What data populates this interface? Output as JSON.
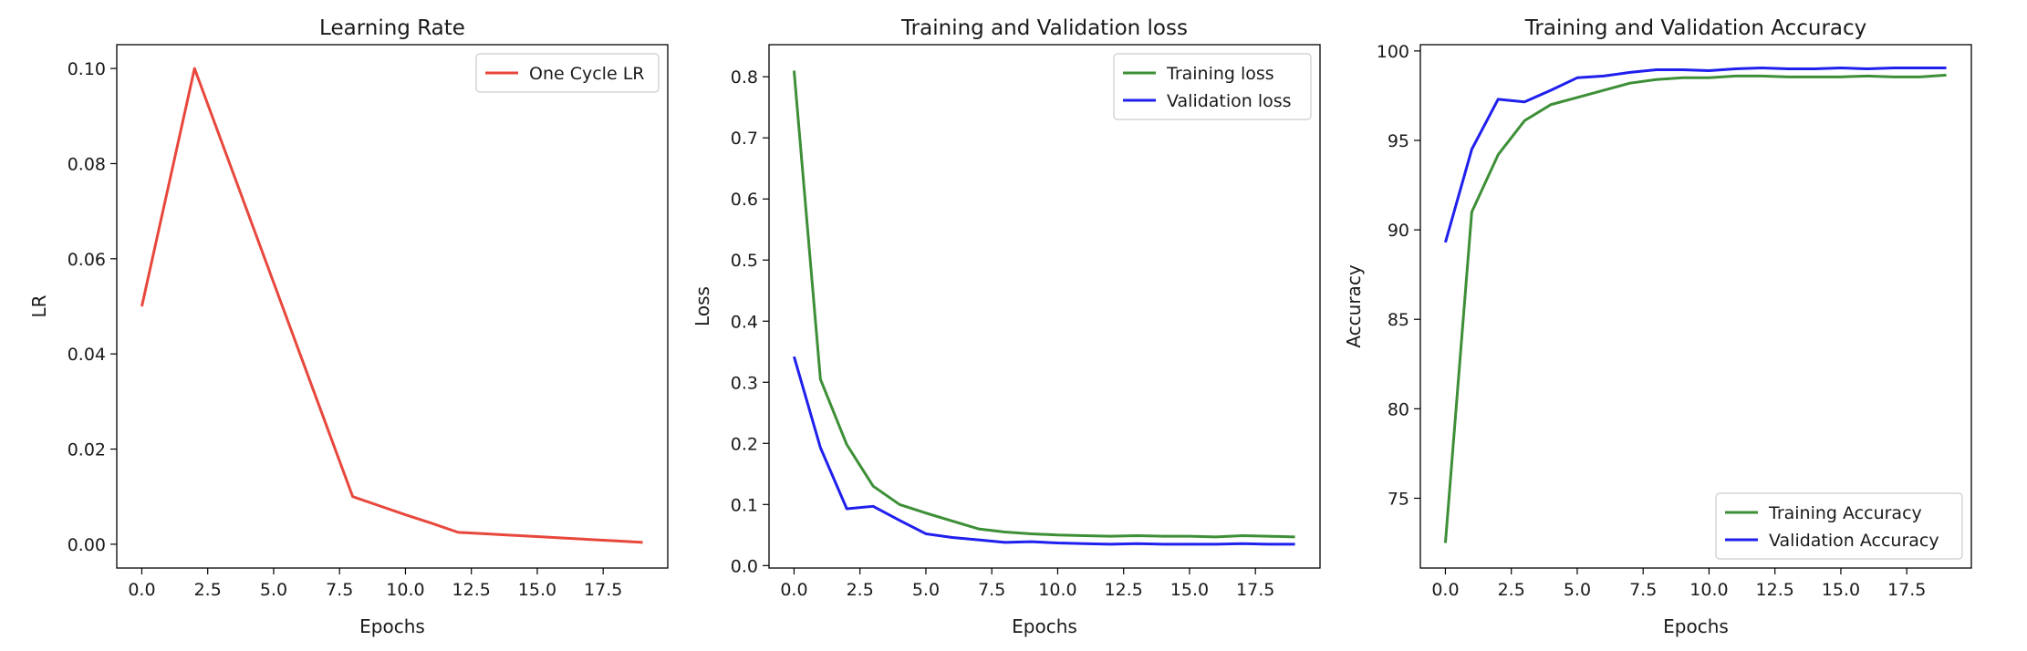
{
  "chart_data": [
    {
      "type": "line",
      "title": "Learning Rate",
      "xlabel": "Epochs",
      "ylabel": "LR",
      "xlim": [
        -0.95,
        19.95
      ],
      "ylim": [
        -0.005,
        0.105
      ],
      "xticks": [
        0.0,
        2.5,
        5.0,
        7.5,
        10.0,
        12.5,
        15.0,
        17.5
      ],
      "xtick_labels": [
        "0.0",
        "2.5",
        "5.0",
        "7.5",
        "10.0",
        "12.5",
        "15.0",
        "17.5"
      ],
      "yticks": [
        0.0,
        0.02,
        0.04,
        0.06,
        0.08,
        0.1
      ],
      "ytick_labels": [
        "0.00",
        "0.02",
        "0.04",
        "0.06",
        "0.08",
        "0.10"
      ],
      "grid": false,
      "legend": "upper-right",
      "series": [
        {
          "name": "One Cycle LR",
          "color": "#e8473c",
          "x": [
            0,
            1,
            2,
            3,
            4,
            5,
            6,
            7,
            8,
            9,
            10,
            11,
            12,
            13,
            14,
            15,
            16,
            17,
            18,
            19
          ],
          "y": [
            0.05,
            0.075,
            0.1,
            0.085,
            0.07,
            0.055,
            0.04,
            0.025,
            0.01,
            0.0081,
            0.0062,
            0.0044,
            0.0025,
            0.0022,
            0.0019,
            0.0016,
            0.0013,
            0.001,
            0.0007,
            0.0004
          ]
        }
      ]
    },
    {
      "type": "line",
      "title": "Training and Validation loss",
      "xlabel": "Epochs",
      "ylabel": "Loss",
      "xlim": [
        -0.95,
        19.95
      ],
      "ylim": [
        -0.004,
        0.8525
      ],
      "xticks": [
        0.0,
        2.5,
        5.0,
        7.5,
        10.0,
        12.5,
        15.0,
        17.5
      ],
      "xtick_labels": [
        "0.0",
        "2.5",
        "5.0",
        "7.5",
        "10.0",
        "12.5",
        "15.0",
        "17.5"
      ],
      "yticks": [
        0.0,
        0.1,
        0.2,
        0.3,
        0.4,
        0.5,
        0.6,
        0.7,
        0.8
      ],
      "ytick_labels": [
        "0.0",
        "0.1",
        "0.2",
        "0.3",
        "0.4",
        "0.5",
        "0.6",
        "0.7",
        "0.8"
      ],
      "grid": false,
      "legend": "upper-right",
      "series": [
        {
          "name": "Training loss",
          "color": "#3d8f37",
          "x": [
            0,
            1,
            2,
            3,
            4,
            5,
            6,
            7,
            8,
            9,
            10,
            11,
            12,
            13,
            14,
            15,
            16,
            17,
            18,
            19
          ],
          "y": [
            0.81,
            0.305,
            0.198,
            0.13,
            0.1,
            0.086,
            0.073,
            0.06,
            0.055,
            0.052,
            0.05,
            0.049,
            0.048,
            0.049,
            0.048,
            0.048,
            0.047,
            0.049,
            0.048,
            0.047
          ]
        },
        {
          "name": "Validation loss",
          "color": "#1f1fee",
          "x": [
            0,
            1,
            2,
            3,
            4,
            5,
            6,
            7,
            8,
            9,
            10,
            11,
            12,
            13,
            14,
            15,
            16,
            17,
            18,
            19
          ],
          "y": [
            0.342,
            0.193,
            0.093,
            0.097,
            0.074,
            0.052,
            0.046,
            0.042,
            0.038,
            0.039,
            0.037,
            0.036,
            0.035,
            0.036,
            0.035,
            0.035,
            0.035,
            0.036,
            0.035,
            0.035
          ]
        }
      ]
    },
    {
      "type": "line",
      "title": "Training and Validation Accuracy",
      "xlabel": "Epochs",
      "ylabel": "Accuracy",
      "xlim": [
        -0.95,
        19.95
      ],
      "ylim": [
        71.1,
        100.35
      ],
      "xticks": [
        0.0,
        2.5,
        5.0,
        7.5,
        10.0,
        12.5,
        15.0,
        17.5
      ],
      "xtick_labels": [
        "0.0",
        "2.5",
        "5.0",
        "7.5",
        "10.0",
        "12.5",
        "15.0",
        "17.5"
      ],
      "yticks": [
        75,
        80,
        85,
        90,
        95,
        100
      ],
      "ytick_labels": [
        "75",
        "80",
        "85",
        "90",
        "95",
        "100"
      ],
      "grid": false,
      "legend": "lower-right",
      "series": [
        {
          "name": "Training Accuracy",
          "color": "#3d8f37",
          "x": [
            0,
            1,
            2,
            3,
            4,
            5,
            6,
            7,
            8,
            9,
            10,
            11,
            12,
            13,
            14,
            15,
            16,
            17,
            18,
            19
          ],
          "y": [
            72.5,
            91.0,
            94.2,
            96.1,
            97.0,
            97.4,
            97.8,
            98.2,
            98.4,
            98.5,
            98.5,
            98.6,
            98.6,
            98.55,
            98.55,
            98.55,
            98.6,
            98.55,
            98.55,
            98.65
          ]
        },
        {
          "name": "Validation Accuracy",
          "color": "#1f1fee",
          "x": [
            0,
            1,
            2,
            3,
            4,
            5,
            6,
            7,
            8,
            9,
            10,
            11,
            12,
            13,
            14,
            15,
            16,
            17,
            18,
            19
          ],
          "y": [
            89.3,
            94.5,
            97.3,
            97.15,
            97.8,
            98.5,
            98.6,
            98.8,
            98.95,
            98.95,
            98.9,
            99.0,
            99.05,
            99.0,
            99.0,
            99.05,
            99.0,
            99.05,
            99.05,
            99.05
          ]
        }
      ]
    }
  ]
}
